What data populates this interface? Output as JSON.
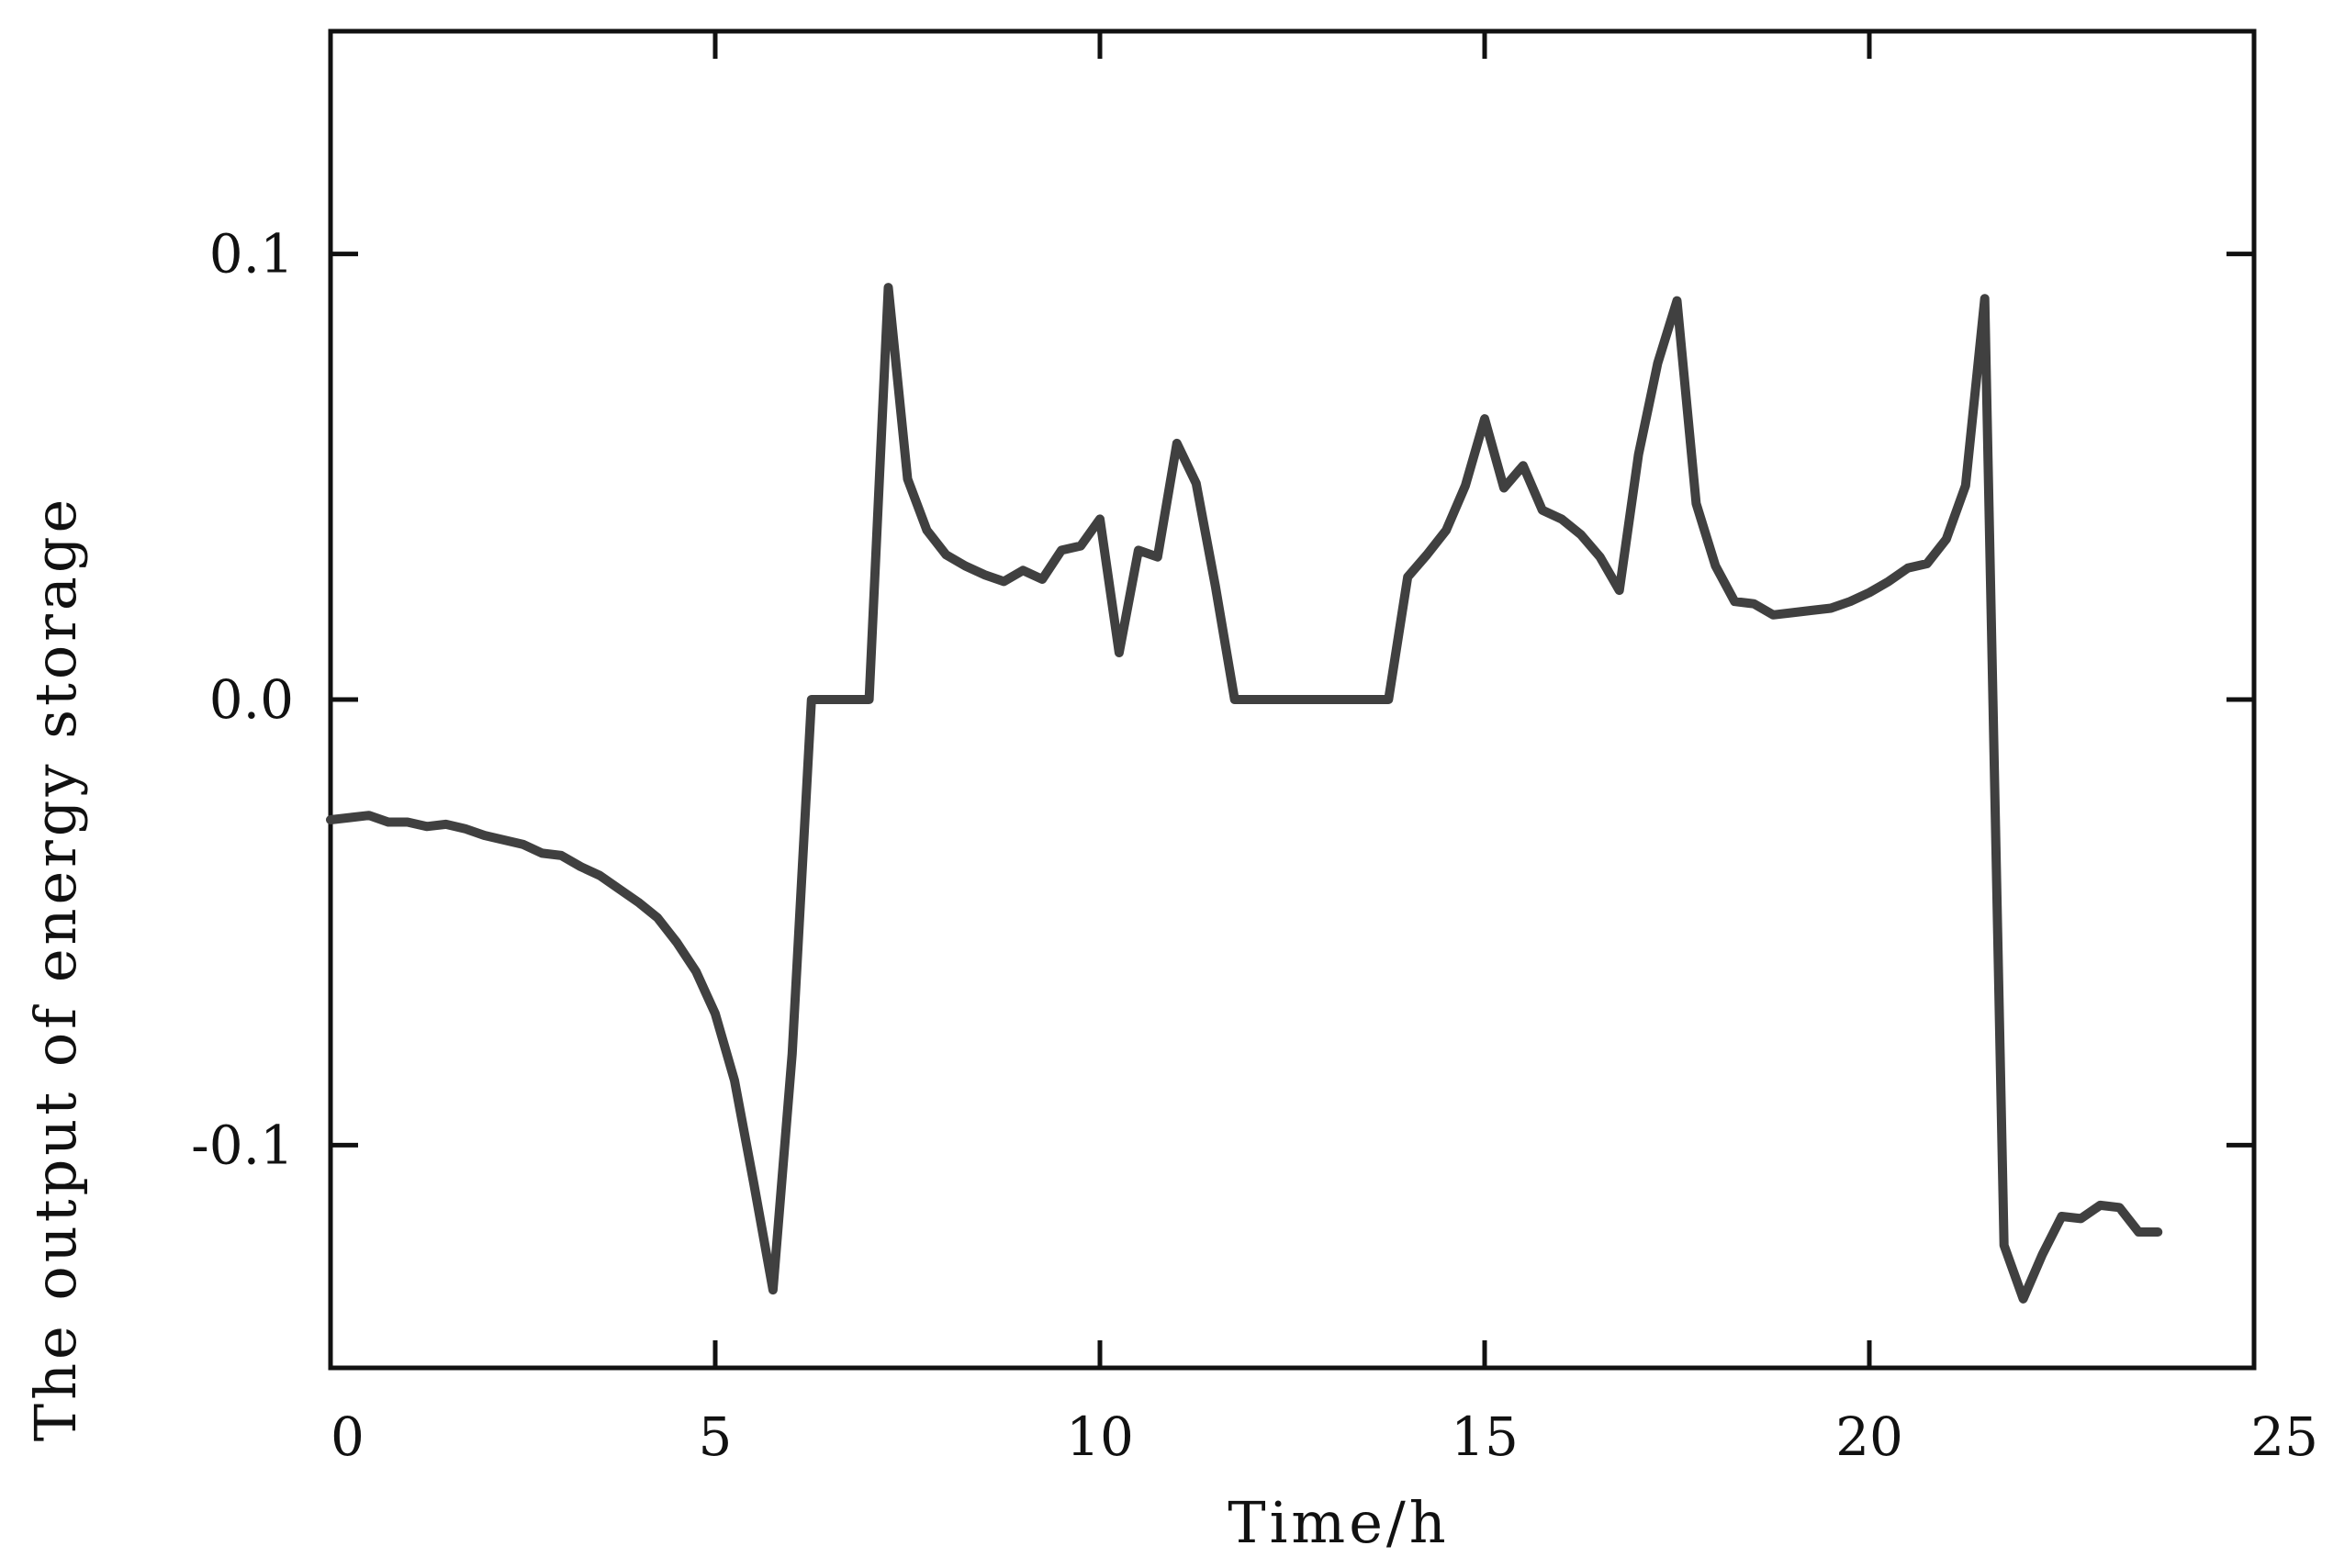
{
  "chart_data": {
    "type": "line",
    "title": "",
    "xlabel": "Time/h",
    "ylabel": "The output of energy storage",
    "xlim": [
      0,
      25
    ],
    "ylim": [
      -0.15,
      0.15
    ],
    "x_ticks": [
      {
        "value": 0,
        "label": "0"
      },
      {
        "value": 5,
        "label": "5"
      },
      {
        "value": 10,
        "label": "10"
      },
      {
        "value": 15,
        "label": "15"
      },
      {
        "value": 20,
        "label": "20"
      },
      {
        "value": 25,
        "label": "25"
      }
    ],
    "y_ticks": [
      {
        "value": 0.1,
        "label": "0.1"
      },
      {
        "value": 0.0,
        "label": "0.0"
      },
      {
        "value": -0.1,
        "label": "-0.1"
      }
    ],
    "grid": false,
    "legend": "none",
    "line_color": "#404040",
    "series": [
      {
        "x": [
          0,
          0.25,
          0.5,
          0.75,
          1.0,
          1.25,
          1.5,
          1.75,
          2.0,
          2.25,
          2.5,
          2.75,
          3.0,
          3.25,
          3.5,
          3.75,
          4.0,
          4.25,
          4.5,
          4.75,
          5.0,
          5.25,
          5.5,
          5.75,
          6.0,
          6.25,
          6.5,
          6.75,
          7.0,
          7.25,
          7.5,
          7.75,
          8.0,
          8.25,
          8.5,
          8.75,
          9.0,
          9.25,
          9.5,
          9.75,
          10.0,
          10.25,
          10.5,
          10.75,
          11.0,
          11.25,
          11.5,
          11.75,
          12.0,
          12.25,
          12.5,
          12.75,
          13.0,
          13.25,
          13.5,
          13.75,
          14.0,
          14.25,
          14.5,
          14.75,
          15.0,
          15.25,
          15.5,
          15.75,
          16.0,
          16.25,
          16.5,
          16.75,
          17.0,
          17.25,
          17.5,
          17.75,
          18.0,
          18.25,
          18.5,
          18.75,
          19.0,
          19.25,
          19.5,
          19.75,
          20.0,
          20.25,
          20.5,
          20.75,
          21.0,
          21.25,
          21.5,
          21.75,
          22.0,
          22.25,
          22.5,
          22.75,
          23.0,
          23.25,
          23.5,
          23.75
        ],
        "y": [
          -0.027,
          -0.0265,
          -0.026,
          -0.0275,
          -0.0275,
          -0.0285,
          -0.028,
          -0.029,
          -0.0305,
          -0.0315,
          -0.0325,
          -0.0345,
          -0.035,
          -0.0375,
          -0.0395,
          -0.0425,
          -0.0455,
          -0.049,
          -0.0545,
          -0.061,
          -0.0705,
          -0.0855,
          -0.1085,
          -0.1325,
          -0.0795,
          0.0,
          0.0,
          0.0,
          0.0,
          0.0925,
          0.0495,
          0.038,
          0.0325,
          0.03,
          0.028,
          0.0265,
          0.029,
          0.027,
          0.0335,
          0.0345,
          0.0405,
          0.0105,
          0.0335,
          0.032,
          0.0575,
          0.0485,
          0.0255,
          0.0,
          0.0,
          0.0,
          0.0,
          0.0,
          0.0,
          0.0,
          0.0,
          0.0,
          0.0275,
          0.0325,
          0.038,
          0.048,
          0.063,
          0.0475,
          0.0525,
          0.0425,
          0.0405,
          0.037,
          0.032,
          0.0245,
          0.055,
          0.0755,
          0.0895,
          0.044,
          0.03,
          0.022,
          0.0215,
          0.019,
          0.0195,
          0.02,
          0.0205,
          0.022,
          0.024,
          0.0265,
          0.0295,
          0.0305,
          0.036,
          0.048,
          0.09,
          -0.1225,
          -0.1345,
          -0.1245,
          -0.116,
          -0.1165,
          -0.1135,
          -0.114,
          -0.1195,
          -0.1195
        ]
      }
    ]
  }
}
